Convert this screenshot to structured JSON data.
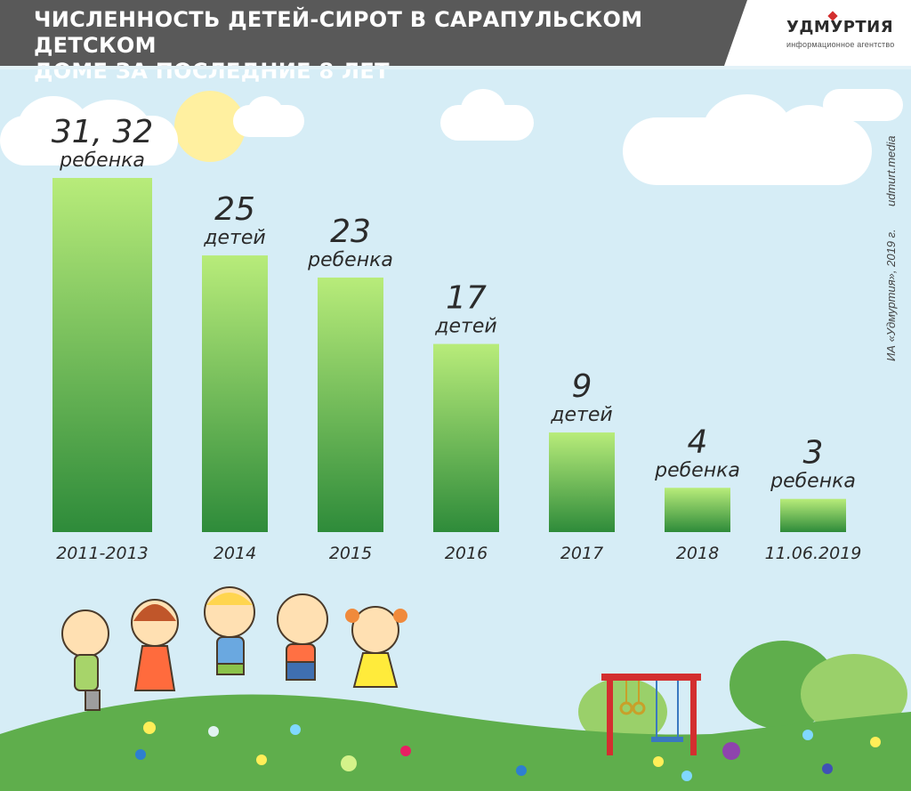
{
  "header": {
    "title_line1": "ЧИСЛЕННОСТЬ ДЕТЕЙ-СИРОТ В САРАПУЛЬСКОМ ДЕТСКОМ",
    "title_line2": "ДОМЕ ЗА ПОСЛЕДНИЕ 8 ЛЕТ",
    "logo_name": "УДМУРТИЯ",
    "logo_sub": "информационное агентство"
  },
  "credits": {
    "site": "udmurt.media",
    "copyright": "ИА «Удмуртия», 2019 г."
  },
  "colors": {
    "bar_top": "#b8ec7a",
    "bar_bottom": "#2e8b3a",
    "sky": "#d6edf6",
    "hill": "#5fae4c",
    "header": "#595959"
  },
  "chart_data": {
    "type": "bar",
    "title": "ЧИСЛЕННОСТЬ ДЕТЕЙ-СИРОТ В САРАПУЛЬСКОМ ДЕТСКОМ ДОМЕ ЗА ПОСЛЕДНИЕ 8 ЛЕТ",
    "categories": [
      "2011-2013",
      "2014",
      "2015",
      "2016",
      "2017",
      "2018",
      "11.06.2019"
    ],
    "values": [
      32,
      25,
      23,
      17,
      9,
      4,
      3
    ],
    "labels": [
      "31, 32",
      "25",
      "23",
      "17",
      "9",
      "4",
      "3"
    ],
    "units": [
      "ребенка",
      "детей",
      "ребенка",
      "детей",
      "детей",
      "ребенка",
      "ребенка"
    ],
    "xlabel": "",
    "ylabel": "",
    "ylim": [
      0,
      32
    ],
    "grid": false,
    "legend": "none"
  }
}
